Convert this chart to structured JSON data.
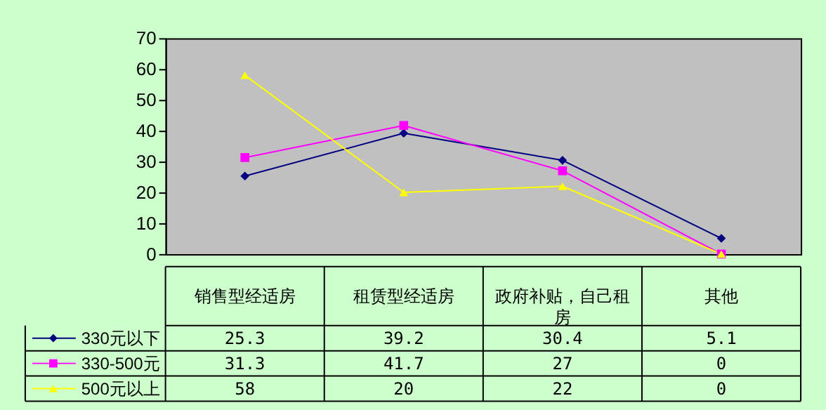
{
  "chart_data": {
    "type": "line",
    "categories": [
      "销售型经适房",
      "租赁型经适房",
      "政府补贴，自己租房",
      "其他"
    ],
    "series": [
      {
        "name": "330元以下",
        "color": "#000080",
        "marker": "diamond",
        "values": [
          25.3,
          39.2,
          30.4,
          5.1
        ]
      },
      {
        "name": "330-500元",
        "color": "#ff00ff",
        "marker": "square",
        "values": [
          31.3,
          41.7,
          27,
          0
        ]
      },
      {
        "name": "500元以上",
        "color": "#ffff00",
        "marker": "triangle",
        "values": [
          58,
          20,
          22,
          0
        ]
      }
    ],
    "ylim": [
      0,
      70
    ],
    "yticks": [
      0,
      10,
      20,
      30,
      40,
      50,
      60,
      70
    ],
    "grid": false,
    "legend": "bottom left",
    "data_labels": true
  }
}
